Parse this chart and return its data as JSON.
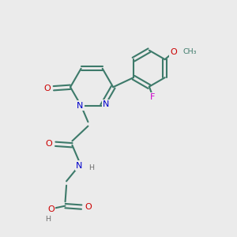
{
  "bg_color": "#ebebeb",
  "C": "#3d7a6a",
  "N": "#0000cc",
  "O": "#cc0000",
  "F": "#cc00cc",
  "H": "#707070",
  "bond": "#3d7a6a"
}
